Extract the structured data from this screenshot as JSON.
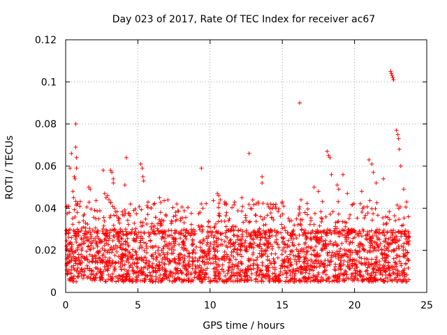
{
  "chart_data": {
    "type": "scatter",
    "title": "Day 023 of 2017, Rate Of TEC Index for receiver ac67",
    "xlabel": "GPS time / hours",
    "ylabel": "ROTI / TECUs",
    "xlim": [
      0,
      25
    ],
    "ylim": [
      0,
      0.12
    ],
    "grid": true,
    "marker": "+",
    "color": "#ff0000",
    "x_ticks": [
      0,
      5,
      10,
      15,
      20,
      25
    ],
    "x_tick_labels": [
      "0",
      "5",
      "10",
      "15",
      "20",
      "25"
    ],
    "y_ticks": [
      0,
      0.02,
      0.04,
      0.06,
      0.08,
      0.1,
      0.12
    ],
    "y_tick_labels": [
      "0",
      "0.02",
      "0.04",
      "0.06",
      "0.08",
      "0.1",
      "0.12"
    ],
    "time_range_hours": [
      0,
      23.8
    ],
    "baseline_band": [
      0.005,
      0.03
    ],
    "series": [
      {
        "name": "ac67 ROTI",
        "x": [
          0.1,
          0.3,
          0.4,
          0.5,
          0.55,
          0.6,
          0.65,
          0.7,
          0.7,
          0.75,
          0.75,
          0.8,
          0.8,
          1.6,
          1.7,
          2.6,
          2.7,
          2.8,
          2.9,
          3.0,
          3.1,
          3.2,
          3.3,
          3.3,
          4.2,
          4.1,
          5.2,
          5.3,
          5.35,
          5.4,
          6.5,
          9.4,
          9.5,
          10.5,
          10.6,
          10.7,
          11.0,
          12.2,
          12.7,
          13.6,
          13.6,
          14.2,
          14.3,
          15.0,
          15.1,
          16.2,
          16.3,
          17.2,
          17.5,
          18.1,
          18.2,
          18.3,
          18.4,
          18.8,
          18.9,
          19.2,
          19.5,
          20.5,
          21.0,
          21.2,
          21.3,
          21.5,
          22.0,
          22.5,
          22.55,
          22.6,
          22.65,
          22.7,
          22.9,
          23.0,
          23.05,
          23.1,
          23.2,
          23.4,
          23.6
        ],
        "y": [
          0.041,
          0.059,
          0.066,
          0.048,
          0.045,
          0.055,
          0.054,
          0.08,
          0.069,
          0.064,
          0.059,
          0.042,
          0.038,
          0.05,
          0.049,
          0.058,
          0.047,
          0.045,
          0.046,
          0.044,
          0.058,
          0.057,
          0.054,
          0.052,
          0.064,
          0.051,
          0.061,
          0.059,
          0.055,
          0.053,
          0.045,
          0.059,
          0.04,
          0.047,
          0.046,
          0.044,
          0.042,
          0.045,
          0.066,
          0.055,
          0.052,
          0.042,
          0.04,
          0.043,
          0.041,
          0.09,
          0.044,
          0.05,
          0.048,
          0.067,
          0.065,
          0.064,
          0.056,
          0.051,
          0.049,
          0.056,
          0.047,
          0.048,
          0.063,
          0.061,
          0.057,
          0.052,
          0.054,
          0.105,
          0.104,
          0.103,
          0.102,
          0.101,
          0.077,
          0.075,
          0.073,
          0.068,
          0.06,
          0.049,
          0.043
        ]
      }
    ]
  }
}
